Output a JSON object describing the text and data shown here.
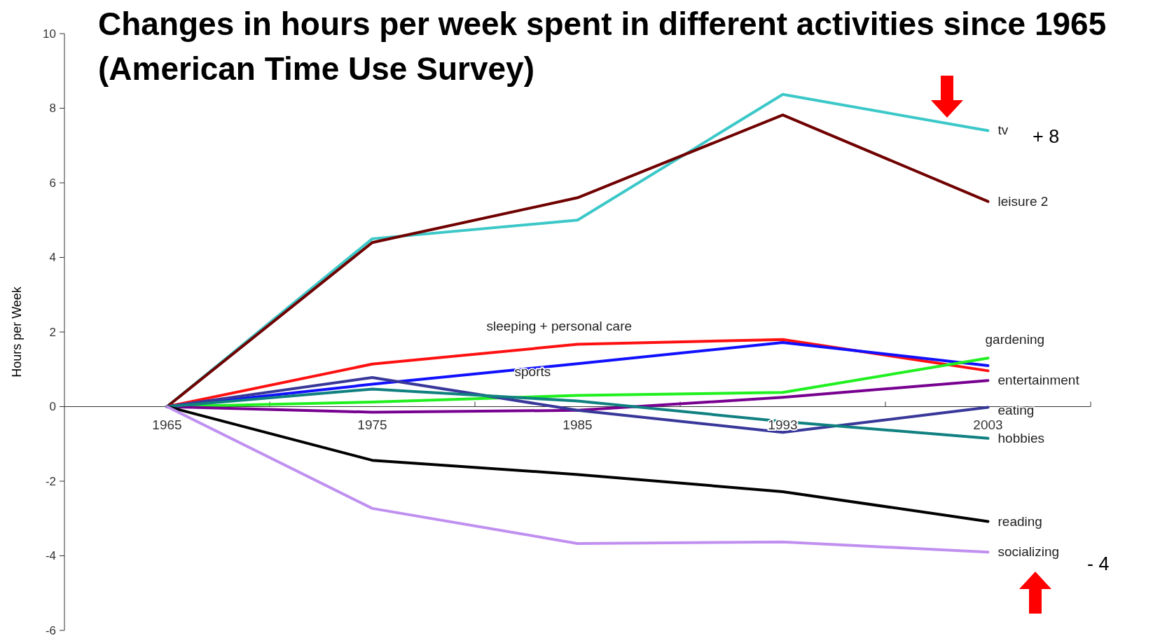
{
  "chart_data": {
    "type": "line",
    "title": "Changes in hours per week spent in different activities since 1965\n(American Time Use Survey)",
    "ylabel": "Hours per Week",
    "categories": [
      "1965",
      "1975",
      "1985",
      "1993",
      "2003"
    ],
    "ylim": [
      -6,
      10
    ],
    "yticks": [
      -6,
      -4,
      -2,
      0,
      2,
      4,
      6,
      8,
      10
    ],
    "grid": false,
    "marker": "none",
    "line_style": "solid",
    "series": [
      {
        "name": "tv",
        "color": "#3cc8c8",
        "values": [
          0,
          4.5,
          5.0,
          8.37,
          7.4
        ]
      },
      {
        "name": "leisure 2",
        "color": "#700000",
        "values": [
          0,
          4.4,
          5.6,
          7.82,
          5.5
        ]
      },
      {
        "name": "sleeping + personal care",
        "color": "#ff1010",
        "values": [
          0,
          1.14,
          1.67,
          1.8,
          0.96
        ]
      },
      {
        "name": "sports",
        "color": "#1010ff",
        "values": [
          0,
          0.6,
          1.15,
          1.72,
          1.1
        ]
      },
      {
        "name": "gardening",
        "color": "#20f020",
        "values": [
          0,
          0.12,
          0.3,
          0.38,
          1.3
        ]
      },
      {
        "name": "entertainment",
        "color": "#780090",
        "values": [
          0,
          -0.15,
          -0.1,
          0.25,
          0.7
        ]
      },
      {
        "name": "eating",
        "color": "#38389a",
        "values": [
          0,
          0.78,
          -0.1,
          -0.69,
          -0.02
        ]
      },
      {
        "name": "hobbies",
        "color": "#108080",
        "values": [
          0,
          0.47,
          0.15,
          -0.4,
          -0.85
        ]
      },
      {
        "name": "reading",
        "color": "#000000",
        "values": [
          0,
          -1.44,
          -1.82,
          -2.28,
          -3.08
        ]
      },
      {
        "name": "socializing",
        "color": "#c090f0",
        "values": [
          0,
          -2.73,
          -3.67,
          -3.63,
          -3.9
        ]
      }
    ],
    "annotations": [
      "+ 8",
      "- 4"
    ]
  }
}
